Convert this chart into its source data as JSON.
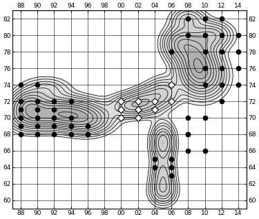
{
  "xticks": [
    88,
    90,
    92,
    94,
    96,
    98,
    0,
    2,
    4,
    6,
    8,
    10,
    12,
    14
  ],
  "yticks": [
    60,
    62,
    64,
    66,
    68,
    70,
    72,
    74,
    76,
    78,
    80,
    82
  ],
  "xticklabels": [
    "88",
    "90",
    "92",
    "94",
    "96",
    "98",
    "00",
    "02",
    "04",
    "06",
    "08",
    "10",
    "12",
    "14"
  ],
  "yticklabels": [
    "60",
    "62",
    "64",
    "66",
    "68",
    "70",
    "72",
    "74",
    "76",
    "78",
    "80",
    "82"
  ],
  "black_dots": [
    [
      88,
      74
    ],
    [
      88,
      72
    ],
    [
      88,
      71
    ],
    [
      88,
      70
    ],
    [
      88,
      69
    ],
    [
      88,
      68
    ],
    [
      90,
      74
    ],
    [
      90,
      72
    ],
    [
      90,
      71
    ],
    [
      90,
      70
    ],
    [
      90,
      69
    ],
    [
      90,
      68
    ],
    [
      92,
      72
    ],
    [
      92,
      71
    ],
    [
      92,
      70
    ],
    [
      92,
      69
    ],
    [
      92,
      68
    ],
    [
      94,
      72
    ],
    [
      94,
      70
    ],
    [
      94,
      69
    ],
    [
      94,
      68
    ],
    [
      96,
      69
    ],
    [
      96,
      68
    ],
    [
      6,
      78
    ],
    [
      8,
      82
    ],
    [
      8,
      80
    ],
    [
      8,
      70
    ],
    [
      8,
      68
    ],
    [
      10,
      82
    ],
    [
      10,
      80
    ],
    [
      10,
      78
    ],
    [
      10,
      76
    ],
    [
      10,
      74
    ],
    [
      10,
      70
    ],
    [
      10,
      66
    ],
    [
      12,
      82
    ],
    [
      12,
      80
    ],
    [
      12,
      78
    ],
    [
      12,
      76
    ],
    [
      12,
      74
    ],
    [
      12,
      72
    ],
    [
      14,
      80
    ],
    [
      14,
      78
    ],
    [
      14,
      76
    ],
    [
      14,
      74
    ],
    [
      4,
      65
    ],
    [
      4,
      64
    ],
    [
      6,
      65
    ],
    [
      6,
      64
    ],
    [
      6,
      63
    ],
    [
      8,
      66
    ],
    [
      8,
      68
    ]
  ],
  "diamond_dots": [
    [
      0,
      72
    ],
    [
      2,
      72
    ],
    [
      4,
      72
    ],
    [
      6,
      72
    ],
    [
      0,
      71
    ],
    [
      2,
      71
    ],
    [
      4,
      71
    ],
    [
      0,
      70
    ],
    [
      2,
      70
    ],
    [
      6,
      74
    ]
  ],
  "bg_color": "#ffffff",
  "contour_color": "#000000"
}
